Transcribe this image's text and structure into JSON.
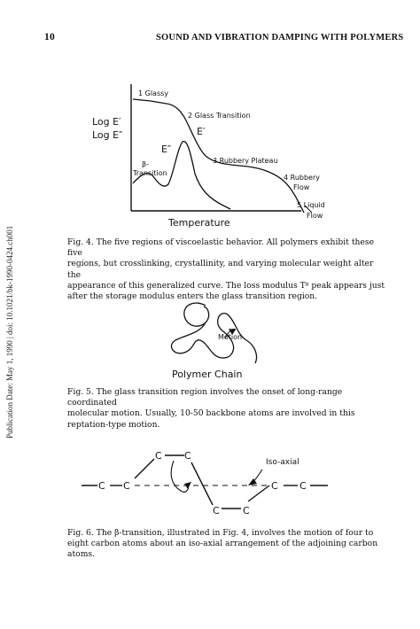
{
  "header": {
    "page_number": "10",
    "running_title": "SOUND AND VIBRATION DAMPING WITH POLYMERS"
  },
  "sidebar_note": "Publication Date: May 1, 1990 | doi: 10.1021/bk-1990-0424.ch001",
  "figure4": {
    "y_label_1": "Log E′",
    "y_label_2": "Log E″",
    "x_label": "Temperature",
    "curve_label_e1": "E′",
    "curve_label_e2": "E″",
    "region_labels": [
      "1 Glassy",
      "2 Glass Transition",
      "3 Rubbery Plateau",
      "4 Rubbery",
      "Flow",
      "5 Liquid",
      "Flow"
    ],
    "beta_label_1": "β-",
    "beta_label_2": "Transition",
    "caption_lines": [
      "Fig. 4.  The five regions of viscoelastic behavior.  All polymers exhibit these five",
      "regions, but crosslinking, crystallinity, and varying molecular weight alter the",
      "appearance of this generalized curve.  The loss modulus Tᵍ peak appears just",
      "after the storage modulus enters the glass transition region."
    ]
  },
  "figure5": {
    "motion_label": "Motion",
    "chain_label": "Polymer Chain",
    "caption_lines": [
      "Fig. 5.  The glass transition region involves the onset of long-range coordinated",
      "molecular motion.  Usually,  10-50 backbone atoms are involved in this",
      "reptation-type motion."
    ]
  },
  "figure6": {
    "atom_labels": [
      "C",
      "C",
      "C",
      "C",
      "C",
      "C",
      "C",
      "C"
    ],
    "iso_axial_label": "Iso-axial",
    "caption_lines": [
      "Fig. 6.  The β-transition, illustrated in Fig. 4, involves the motion of four to",
      "eight carbon atoms about an iso-axial arrangement of the adjoining carbon",
      "atoms."
    ]
  }
}
